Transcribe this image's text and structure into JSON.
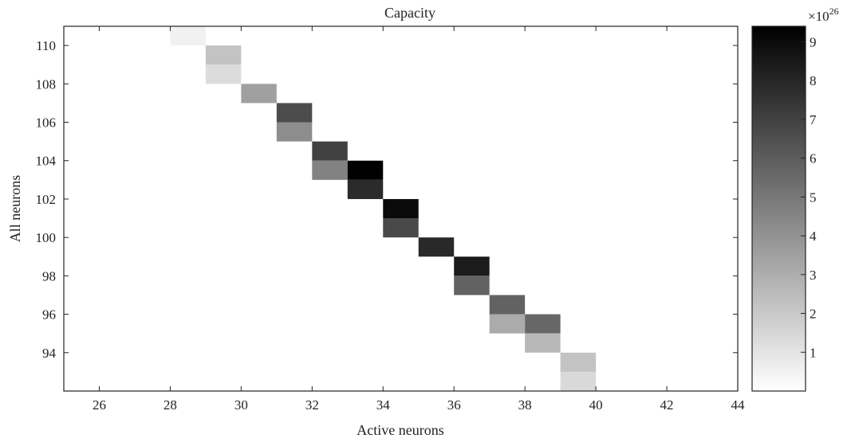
{
  "chart_data": {
    "type": "heatmap",
    "title": "Capacity",
    "xlabel": "Active neurons",
    "ylabel": "All neurons",
    "xlim": [
      25,
      44
    ],
    "ylim": [
      92,
      111
    ],
    "x_ticks": [
      26,
      28,
      30,
      32,
      34,
      36,
      38,
      40,
      42,
      44
    ],
    "y_ticks": [
      94,
      96,
      98,
      100,
      102,
      104,
      106,
      108,
      110
    ],
    "cells": [
      {
        "x": 28,
        "y": 110,
        "value": 0.5
      },
      {
        "x": 29,
        "y": 109,
        "value": 2.2
      },
      {
        "x": 29,
        "y": 108,
        "value": 1.3
      },
      {
        "x": 30,
        "y": 107,
        "value": 3.5
      },
      {
        "x": 31,
        "y": 106,
        "value": 6.6
      },
      {
        "x": 31,
        "y": 105,
        "value": 4.2
      },
      {
        "x": 32,
        "y": 104,
        "value": 7.0
      },
      {
        "x": 32,
        "y": 103,
        "value": 4.6
      },
      {
        "x": 33,
        "y": 103,
        "value": 9.5
      },
      {
        "x": 33,
        "y": 102,
        "value": 7.8
      },
      {
        "x": 34,
        "y": 101,
        "value": 9.0
      },
      {
        "x": 34,
        "y": 100,
        "value": 6.7
      },
      {
        "x": 35,
        "y": 99,
        "value": 7.9
      },
      {
        "x": 36,
        "y": 98,
        "value": 8.4
      },
      {
        "x": 36,
        "y": 97,
        "value": 5.8
      },
      {
        "x": 37,
        "y": 96,
        "value": 5.8
      },
      {
        "x": 37,
        "y": 95,
        "value": 3.1
      },
      {
        "x": 38,
        "y": 95,
        "value": 5.6
      },
      {
        "x": 38,
        "y": 94,
        "value": 2.6
      },
      {
        "x": 39,
        "y": 93,
        "value": 2.2
      },
      {
        "x": 39,
        "y": 92,
        "value": 1.4
      }
    ],
    "colorbar": {
      "min": 0,
      "max": 9.4,
      "ticks": [
        1,
        2,
        3,
        4,
        5,
        6,
        7,
        8,
        9
      ],
      "multiplier_base": "×10",
      "multiplier_exponent": "26",
      "colormap": "gray_reversed"
    },
    "grid": false
  }
}
